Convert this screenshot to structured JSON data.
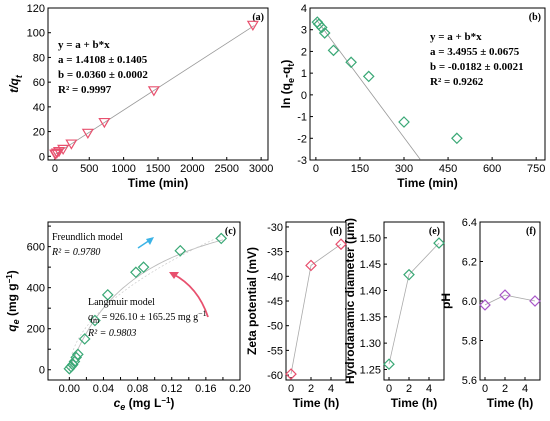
{
  "chart_data": [
    {
      "id": "a",
      "type": "scatter",
      "panel_label": "(a)",
      "xlabel": "Time (min)",
      "ylabel_main": "t/q",
      "ylabel_sub": "t",
      "xlim": [
        -100,
        3100
      ],
      "ylim": [
        -3,
        120
      ],
      "xticks": [
        0,
        500,
        1000,
        1500,
        2000,
        2500,
        3000
      ],
      "yticks": [
        0,
        20,
        40,
        60,
        80,
        100,
        120
      ],
      "x": [
        5,
        10,
        30,
        60,
        120,
        240,
        480,
        720,
        1440,
        2880
      ],
      "y": [
        1.6,
        1.8,
        2.6,
        3.8,
        5.6,
        9.9,
        18.6,
        27.3,
        53.0,
        106.0
      ],
      "fit": {
        "intercept": 1.4108,
        "slope": 0.036,
        "xrange": [
          0,
          2900
        ]
      },
      "marker": "triangle-down",
      "color": "#e8506e",
      "equation_lines": [
        "y = a + b*x",
        "a = 1.4108 ± 0.1405",
        "b = 0.0360 ± 0.0002",
        "R² = 0.9997"
      ]
    },
    {
      "id": "b",
      "type": "scatter",
      "panel_label": "(b)",
      "xlabel": "Time (min)",
      "ylabel_main": "ln (q",
      "ylabel_sub1": "e",
      "ylabel_mid": "-q",
      "ylabel_sub2": "t",
      "ylabel_end": ")",
      "xlim": [
        -20,
        780
      ],
      "ylim": [
        -3,
        4
      ],
      "xticks": [
        0,
        150,
        300,
        450,
        600,
        750
      ],
      "yticks": [
        -3,
        -2,
        -1,
        0,
        1,
        2,
        3,
        4
      ],
      "x": [
        5,
        10,
        20,
        30,
        60,
        120,
        180,
        300,
        480
      ],
      "y": [
        3.35,
        3.25,
        3.1,
        2.85,
        2.05,
        1.5,
        0.85,
        -1.25,
        -2.0
      ],
      "fit": {
        "intercept": 3.4955,
        "slope": -0.0182,
        "xrange": [
          0,
          355
        ]
      },
      "marker": "diamond",
      "color": "#3aa876",
      "equation_lines": [
        "y = a + b*x",
        "a = 3.4955 ± 0.0675",
        "b = -0.0182 ± 0.0021",
        "R² = 0.9262"
      ]
    },
    {
      "id": "c",
      "type": "scatter",
      "panel_label": "(c)",
      "xlabel_main": "c",
      "xlabel_sub": "e",
      "xlabel_end": " (mg L",
      "xlabel_sup": "−1",
      "xlabel_close": ")",
      "ylabel_main": "q",
      "ylabel_sub": "e",
      "ylabel_end": " (mg g",
      "ylabel_sup": "−1",
      "ylabel_close": ")",
      "xlim": [
        -0.025,
        0.2
      ],
      "ylim": [
        -50,
        720
      ],
      "xticks": [
        0.0,
        0.02,
        0.04,
        0.06,
        0.08,
        0.1,
        0.12,
        0.14,
        0.16,
        0.18,
        0.2
      ],
      "xticklabels": [
        "0.00",
        "",
        "0.04",
        "",
        "0.08",
        "",
        "0.12",
        "",
        "0.16",
        "",
        "0.20"
      ],
      "yticks": [
        0,
        100,
        200,
        300,
        400,
        500,
        600,
        700
      ],
      "yticklabels": [
        "0",
        "",
        "200",
        "",
        "400",
        "",
        "600",
        ""
      ],
      "x": [
        0.0,
        0.002,
        0.004,
        0.006,
        0.008,
        0.01,
        0.018,
        0.03,
        0.045,
        0.078,
        0.087,
        0.13,
        0.178
      ],
      "y": [
        5,
        15,
        25,
        40,
        60,
        75,
        150,
        240,
        365,
        475,
        500,
        580,
        640
      ],
      "fit": {
        "langmuir_qm": 926.1,
        "langmuir_b": 12.0,
        "freundlich_k": 1600,
        "freundlich_n": 0.52
      },
      "marker": "diamond",
      "color": "#3aa876",
      "freundlich_title": "Freundlich model",
      "freundlich_r2": "R² = 0.9780",
      "langmuir_title": "Langmuir model",
      "langmuir_qm_text": "q",
      "langmuir_qm_sub": "m",
      "langmuir_qm_value": " = 926.10 ± 165.25 mg g",
      "langmuir_qm_sup": "−1",
      "langmuir_r2": "R² = 0.9803"
    },
    {
      "id": "d",
      "type": "line",
      "panel_label": "(d)",
      "xlabel": "Time (h)",
      "ylabel": "Zeta potential (mV)",
      "xlim": [
        -0.5,
        5.5
      ],
      "ylim": [
        -61,
        -29
      ],
      "xticks": [
        0,
        2,
        4
      ],
      "yticks": [
        -60,
        -55,
        -50,
        -45,
        -40,
        -35,
        -30
      ],
      "x": [
        0,
        2,
        5
      ],
      "y": [
        -59.8,
        -37.8,
        -33.5
      ],
      "marker": "diamond",
      "color": "#e8506e"
    },
    {
      "id": "e",
      "type": "line",
      "panel_label": "(e)",
      "xlabel": "Time (h)",
      "ylabel": "Hydrodanamic diameter (μm)",
      "xlim": [
        -0.5,
        5.5
      ],
      "ylim": [
        1.23,
        1.53
      ],
      "xticks": [
        0,
        2,
        4
      ],
      "yticks": [
        1.25,
        1.3,
        1.35,
        1.4,
        1.45,
        1.5
      ],
      "yticklabels": [
        "1.25",
        "1.30",
        "1.35",
        "1.40",
        "1.45",
        "1.50"
      ],
      "x": [
        0,
        2,
        5
      ],
      "y": [
        1.26,
        1.43,
        1.49
      ],
      "marker": "diamond",
      "color": "#3aa876"
    },
    {
      "id": "f",
      "type": "line",
      "panel_label": "(f)",
      "xlabel": "Time (h)",
      "ylabel": "pH",
      "xlim": [
        -0.5,
        5.5
      ],
      "ylim": [
        5.6,
        6.4
      ],
      "xticks": [
        0,
        2,
        4
      ],
      "yticks": [
        5.6,
        5.8,
        6.0,
        6.2,
        6.4
      ],
      "yticklabels": [
        "5.6",
        "5.8",
        "6.0",
        "6.2",
        "6.4"
      ],
      "x": [
        0,
        2,
        5
      ],
      "y": [
        5.98,
        6.03,
        6.0
      ],
      "marker": "diamond",
      "color": "#a855c8"
    }
  ]
}
